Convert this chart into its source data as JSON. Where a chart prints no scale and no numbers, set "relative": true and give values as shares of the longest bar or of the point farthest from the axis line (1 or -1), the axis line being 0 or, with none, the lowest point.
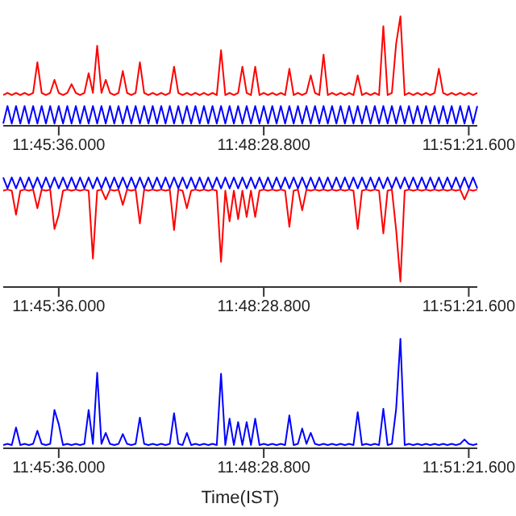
{
  "chart_data": [
    {
      "type": "line",
      "relative": true,
      "categories": [
        null,
        null,
        null,
        null,
        null,
        null,
        null,
        null,
        null,
        null,
        null,
        null,
        null,
        "11:45:36.000",
        null,
        null,
        null,
        null,
        null,
        null,
        null,
        null,
        null,
        null,
        null,
        null,
        null,
        null,
        null,
        null,
        null,
        null,
        null,
        null,
        null,
        null,
        null,
        null,
        null,
        null,
        null,
        null,
        null,
        null,
        null,
        null,
        null,
        null,
        null,
        null,
        null,
        null,
        null,
        null,
        null,
        null,
        null,
        null,
        null,
        null,
        null,
        "11:48:28.800",
        null,
        null,
        null,
        null,
        null,
        null,
        null,
        null,
        null,
        null,
        null,
        null,
        null,
        null,
        null,
        null,
        null,
        null,
        null,
        null,
        null,
        null,
        null,
        null,
        null,
        null,
        null,
        null,
        null,
        null,
        null,
        null,
        null,
        null,
        null,
        null,
        null,
        null,
        null,
        null,
        null,
        null,
        null,
        null,
        null,
        null,
        null,
        "11:51:21.600",
        null,
        null
      ],
      "series": [
        {
          "color": "#0000ff",
          "values": [
            0.02,
            0.18,
            0.02,
            0.18,
            0.02,
            0.18,
            0.02,
            0.18,
            0.02,
            0.18,
            0.02,
            0.18,
            0.02,
            0.18,
            0.02,
            0.18,
            0.02,
            0.18,
            0.02,
            0.18,
            0.02,
            0.18,
            0.02,
            0.18,
            0.02,
            0.18,
            0.02,
            0.18,
            0.02,
            0.18,
            0.02,
            0.18,
            0.02,
            0.18,
            0.02,
            0.18,
            0.02,
            0.18,
            0.02,
            0.18,
            0.02,
            0.18,
            0.02,
            0.18,
            0.02,
            0.18,
            0.02,
            0.18,
            0.02,
            0.18,
            0.02,
            0.18,
            0.02,
            0.18,
            0.02,
            0.18,
            0.02,
            0.18,
            0.02,
            0.18,
            0.02,
            0.18,
            0.02,
            0.18,
            0.02,
            0.18,
            0.02,
            0.18,
            0.02,
            0.18,
            0.02,
            0.18,
            0.02,
            0.18,
            0.02,
            0.18,
            0.02,
            0.18,
            0.02,
            0.18,
            0.02,
            0.18,
            0.02,
            0.18,
            0.02,
            0.18,
            0.02,
            0.18,
            0.02,
            0.18,
            0.02,
            0.18,
            0.02,
            0.18,
            0.02,
            0.18,
            0.02,
            0.18,
            0.02,
            0.18,
            0.02,
            0.18,
            0.02,
            0.18,
            0.02,
            0.18,
            0.02,
            0.18,
            0.02,
            0.18,
            0.02,
            0.18
          ]
        },
        {
          "color": "#ff0000",
          "values": [
            0.28,
            0.3,
            0.28,
            0.3,
            0.28,
            0.3,
            0.28,
            0.3,
            0.58,
            0.3,
            0.28,
            0.3,
            0.42,
            0.3,
            0.28,
            0.3,
            0.38,
            0.3,
            0.28,
            0.3,
            0.48,
            0.3,
            0.73,
            0.3,
            0.42,
            0.3,
            0.28,
            0.3,
            0.5,
            0.3,
            0.28,
            0.3,
            0.58,
            0.3,
            0.28,
            0.3,
            0.28,
            0.3,
            0.28,
            0.3,
            0.54,
            0.3,
            0.28,
            0.3,
            0.28,
            0.3,
            0.28,
            0.3,
            0.28,
            0.3,
            0.28,
            0.69,
            0.28,
            0.3,
            0.28,
            0.3,
            0.54,
            0.3,
            0.28,
            0.54,
            0.28,
            0.3,
            0.28,
            0.3,
            0.28,
            0.3,
            0.28,
            0.52,
            0.28,
            0.3,
            0.28,
            0.3,
            0.46,
            0.3,
            0.28,
            0.65,
            0.28,
            0.3,
            0.28,
            0.3,
            0.28,
            0.3,
            0.28,
            0.46,
            0.28,
            0.3,
            0.28,
            0.3,
            0.28,
            0.91,
            0.28,
            0.3,
            0.75,
            1.0,
            0.28,
            0.3,
            0.28,
            0.3,
            0.28,
            0.3,
            0.28,
            0.3,
            0.52,
            0.3,
            0.28,
            0.3,
            0.28,
            0.3,
            0.28,
            0.3,
            0.28,
            0.3
          ]
        }
      ]
    },
    {
      "type": "line",
      "relative": true,
      "categories": [
        null,
        null,
        null,
        null,
        null,
        null,
        null,
        null,
        null,
        null,
        null,
        null,
        null,
        "11:45:36.000",
        null,
        null,
        null,
        null,
        null,
        null,
        null,
        null,
        null,
        null,
        null,
        null,
        null,
        null,
        null,
        null,
        null,
        null,
        null,
        null,
        null,
        null,
        null,
        null,
        null,
        null,
        null,
        null,
        null,
        null,
        null,
        null,
        null,
        null,
        null,
        null,
        null,
        null,
        null,
        null,
        null,
        null,
        null,
        null,
        null,
        null,
        null,
        "11:48:28.800",
        null,
        null,
        null,
        null,
        null,
        null,
        null,
        null,
        null,
        null,
        null,
        null,
        null,
        null,
        null,
        null,
        null,
        null,
        null,
        null,
        null,
        null,
        null,
        null,
        null,
        null,
        null,
        null,
        null,
        null,
        null,
        null,
        null,
        null,
        null,
        null,
        null,
        null,
        null,
        null,
        null,
        null,
        null,
        null,
        null,
        null,
        null,
        "11:51:21.600",
        null,
        null
      ],
      "series": [
        {
          "color": "#ff0000",
          "values": [
            0.88,
            0.89,
            0.88,
            0.66,
            0.88,
            0.89,
            0.88,
            0.89,
            0.72,
            0.89,
            0.88,
            0.89,
            0.53,
            0.66,
            0.88,
            0.89,
            0.88,
            0.89,
            0.88,
            0.89,
            0.88,
            0.26,
            0.88,
            0.89,
            0.8,
            0.89,
            0.88,
            0.89,
            0.75,
            0.89,
            0.88,
            0.89,
            0.58,
            0.89,
            0.88,
            0.89,
            0.88,
            0.89,
            0.88,
            0.89,
            0.52,
            0.89,
            0.88,
            0.72,
            0.88,
            0.89,
            0.88,
            0.89,
            0.88,
            0.89,
            0.88,
            0.23,
            0.88,
            0.6,
            0.88,
            0.62,
            0.88,
            0.64,
            0.88,
            0.64,
            0.88,
            0.89,
            0.88,
            0.89,
            0.88,
            0.89,
            0.88,
            0.55,
            0.88,
            0.89,
            0.7,
            0.89,
            0.88,
            0.89,
            0.88,
            0.89,
            0.88,
            0.89,
            0.88,
            0.89,
            0.88,
            0.89,
            0.88,
            0.53,
            0.88,
            0.89,
            0.88,
            0.89,
            0.88,
            0.49,
            0.88,
            0.89,
            0.52,
            0.05,
            0.88,
            0.89,
            0.88,
            0.89,
            0.88,
            0.89,
            0.88,
            0.89,
            0.88,
            0.89,
            0.88,
            0.89,
            0.88,
            0.89,
            0.8,
            0.89,
            0.88,
            0.89
          ]
        },
        {
          "color": "#0000ff",
          "values": [
            1.0,
            0.9,
            1.0,
            0.9,
            1.0,
            0.9,
            1.0,
            0.9,
            1.0,
            0.9,
            1.0,
            0.9,
            1.0,
            0.9,
            1.0,
            0.9,
            1.0,
            0.9,
            1.0,
            0.9,
            1.0,
            0.9,
            1.0,
            0.9,
            1.0,
            0.9,
            1.0,
            0.9,
            1.0,
            0.9,
            1.0,
            0.9,
            1.0,
            0.9,
            1.0,
            0.9,
            1.0,
            0.9,
            1.0,
            0.9,
            1.0,
            0.9,
            1.0,
            0.9,
            1.0,
            0.9,
            1.0,
            0.9,
            1.0,
            0.9,
            1.0,
            0.9,
            1.0,
            0.9,
            1.0,
            0.9,
            1.0,
            0.9,
            1.0,
            0.9,
            1.0,
            0.9,
            1.0,
            0.9,
            1.0,
            0.9,
            1.0,
            0.9,
            1.0,
            0.9,
            1.0,
            0.9,
            1.0,
            0.9,
            1.0,
            0.9,
            1.0,
            0.9,
            1.0,
            0.9,
            1.0,
            0.9,
            1.0,
            0.9,
            1.0,
            0.9,
            1.0,
            0.9,
            1.0,
            0.9,
            1.0,
            0.9,
            1.0,
            0.9,
            1.0,
            0.9,
            1.0,
            0.9,
            1.0,
            0.9,
            1.0,
            0.9,
            1.0,
            0.9,
            1.0,
            0.9,
            1.0,
            0.9,
            1.0,
            0.9,
            1.0,
            0.9
          ]
        }
      ]
    },
    {
      "type": "line",
      "relative": true,
      "xlabel": "Time(IST)",
      "categories": [
        null,
        null,
        null,
        null,
        null,
        null,
        null,
        null,
        null,
        null,
        null,
        null,
        null,
        "11:45:36.000",
        null,
        null,
        null,
        null,
        null,
        null,
        null,
        null,
        null,
        null,
        null,
        null,
        null,
        null,
        null,
        null,
        null,
        null,
        null,
        null,
        null,
        null,
        null,
        null,
        null,
        null,
        null,
        null,
        null,
        null,
        null,
        null,
        null,
        null,
        null,
        null,
        null,
        null,
        null,
        null,
        null,
        null,
        null,
        null,
        null,
        null,
        null,
        "11:48:28.800",
        null,
        null,
        null,
        null,
        null,
        null,
        null,
        null,
        null,
        null,
        null,
        null,
        null,
        null,
        null,
        null,
        null,
        null,
        null,
        null,
        null,
        null,
        null,
        null,
        null,
        null,
        null,
        null,
        null,
        null,
        null,
        null,
        null,
        null,
        null,
        null,
        null,
        null,
        null,
        null,
        null,
        null,
        null,
        null,
        null,
        null,
        null,
        "11:51:21.600",
        null,
        null
      ],
      "series": [
        {
          "color": "#0000ff",
          "values": [
            0.03,
            0.04,
            0.03,
            0.19,
            0.03,
            0.04,
            0.03,
            0.04,
            0.16,
            0.04,
            0.03,
            0.04,
            0.35,
            0.22,
            0.03,
            0.04,
            0.03,
            0.04,
            0.03,
            0.04,
            0.35,
            0.04,
            0.69,
            0.04,
            0.14,
            0.04,
            0.03,
            0.04,
            0.13,
            0.04,
            0.03,
            0.04,
            0.28,
            0.04,
            0.03,
            0.04,
            0.03,
            0.04,
            0.03,
            0.04,
            0.32,
            0.04,
            0.03,
            0.14,
            0.03,
            0.04,
            0.03,
            0.04,
            0.03,
            0.04,
            0.03,
            0.68,
            0.03,
            0.27,
            0.03,
            0.24,
            0.03,
            0.24,
            0.03,
            0.27,
            0.03,
            0.04,
            0.03,
            0.04,
            0.03,
            0.04,
            0.03,
            0.3,
            0.03,
            0.04,
            0.18,
            0.04,
            0.14,
            0.04,
            0.03,
            0.04,
            0.03,
            0.04,
            0.03,
            0.04,
            0.03,
            0.04,
            0.03,
            0.33,
            0.03,
            0.04,
            0.03,
            0.04,
            0.03,
            0.36,
            0.03,
            0.04,
            0.36,
            1.0,
            0.03,
            0.04,
            0.03,
            0.04,
            0.03,
            0.04,
            0.03,
            0.04,
            0.03,
            0.04,
            0.03,
            0.04,
            0.03,
            0.04,
            0.08,
            0.04,
            0.03,
            0.04
          ]
        }
      ]
    }
  ]
}
